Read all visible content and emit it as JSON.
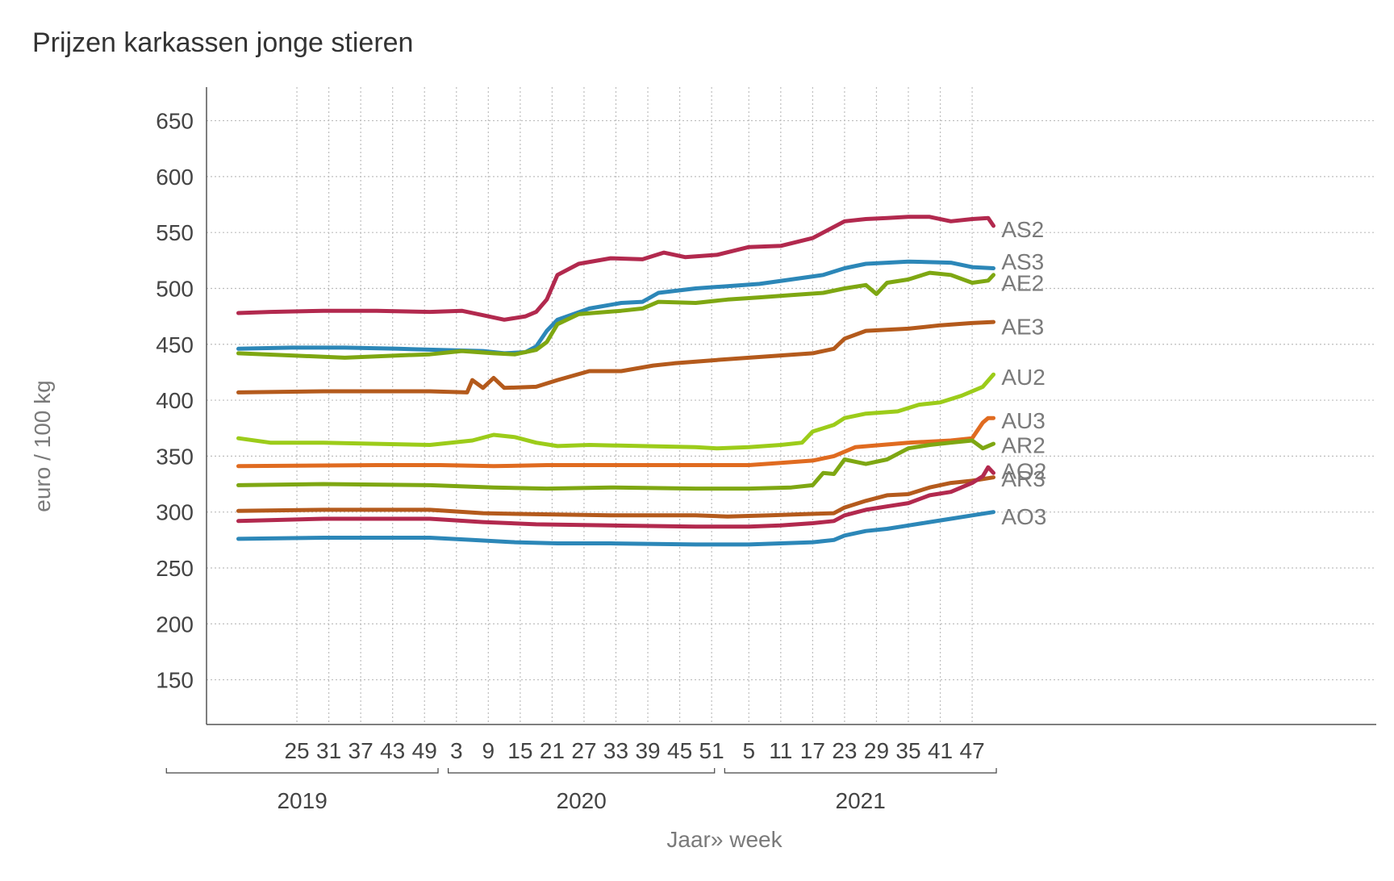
{
  "chart_data": {
    "type": "line",
    "title": "Prijzen karkassen jonge stieren",
    "xlabel": "Jaar» week",
    "ylabel": "euro / 100 kg",
    "ylim": [
      110,
      680
    ],
    "yticks": [
      150,
      200,
      250,
      300,
      350,
      400,
      450,
      500,
      550,
      600,
      650
    ],
    "x_start_week": 8,
    "x_end_week": 228,
    "xticks": [
      {
        "week": 25,
        "label": "25"
      },
      {
        "week": 31,
        "label": "31"
      },
      {
        "week": 37,
        "label": "37"
      },
      {
        "week": 43,
        "label": "43"
      },
      {
        "week": 49,
        "label": "49"
      },
      {
        "week": 55,
        "label": "3"
      },
      {
        "week": 61,
        "label": "9"
      },
      {
        "week": 67,
        "label": "15"
      },
      {
        "week": 73,
        "label": "21"
      },
      {
        "week": 79,
        "label": "27"
      },
      {
        "week": 85,
        "label": "33"
      },
      {
        "week": 91,
        "label": "39"
      },
      {
        "week": 97,
        "label": "45"
      },
      {
        "week": 103,
        "label": "51"
      },
      {
        "week": 110,
        "label": "5"
      },
      {
        "week": 116,
        "label": "11"
      },
      {
        "week": 122,
        "label": "17"
      },
      {
        "week": 128,
        "label": "23"
      },
      {
        "week": 134,
        "label": "29"
      },
      {
        "week": 140,
        "label": "35"
      },
      {
        "week": 146,
        "label": "41"
      },
      {
        "week": 152,
        "label": "47"
      }
    ],
    "years": [
      {
        "label": "2019",
        "start_week": 0,
        "end_week": 52
      },
      {
        "label": "2020",
        "start_week": 53,
        "end_week": 104
      },
      {
        "label": "2021",
        "start_week": 105,
        "end_week": 157
      }
    ],
    "series": [
      {
        "name": "AS2",
        "color": "#b2294e",
        "label_value": 553,
        "points": [
          [
            14,
            478
          ],
          [
            20,
            479
          ],
          [
            30,
            480
          ],
          [
            40,
            480
          ],
          [
            50,
            479
          ],
          [
            56,
            480
          ],
          [
            60,
            476
          ],
          [
            64,
            472
          ],
          [
            68,
            475
          ],
          [
            70,
            479
          ],
          [
            72,
            490
          ],
          [
            74,
            512
          ],
          [
            78,
            522
          ],
          [
            84,
            527
          ],
          [
            90,
            526
          ],
          [
            94,
            532
          ],
          [
            98,
            528
          ],
          [
            104,
            530
          ],
          [
            110,
            537
          ],
          [
            116,
            538
          ],
          [
            122,
            545
          ],
          [
            128,
            560
          ],
          [
            132,
            562
          ],
          [
            136,
            563
          ],
          [
            140,
            564
          ],
          [
            144,
            564
          ],
          [
            148,
            560
          ],
          [
            152,
            562
          ],
          [
            155,
            563
          ],
          [
            156,
            556
          ]
        ]
      },
      {
        "name": "AS3",
        "color": "#2c87b8",
        "label_value": 524,
        "points": [
          [
            14,
            446
          ],
          [
            24,
            447
          ],
          [
            34,
            447
          ],
          [
            44,
            446
          ],
          [
            52,
            445
          ],
          [
            60,
            444
          ],
          [
            64,
            442
          ],
          [
            68,
            443
          ],
          [
            70,
            448
          ],
          [
            72,
            462
          ],
          [
            74,
            472
          ],
          [
            80,
            482
          ],
          [
            86,
            487
          ],
          [
            90,
            488
          ],
          [
            93,
            496
          ],
          [
            100,
            500
          ],
          [
            106,
            502
          ],
          [
            112,
            504
          ],
          [
            118,
            508
          ],
          [
            124,
            512
          ],
          [
            128,
            518
          ],
          [
            132,
            522
          ],
          [
            140,
            524
          ],
          [
            148,
            523
          ],
          [
            152,
            519
          ],
          [
            156,
            518
          ]
        ]
      },
      {
        "name": "AE2",
        "color": "#7ea712",
        "label_value": 505,
        "points": [
          [
            14,
            442
          ],
          [
            24,
            440
          ],
          [
            34,
            438
          ],
          [
            44,
            440
          ],
          [
            50,
            441
          ],
          [
            56,
            444
          ],
          [
            62,
            442
          ],
          [
            66,
            441
          ],
          [
            70,
            445
          ],
          [
            72,
            452
          ],
          [
            74,
            468
          ],
          [
            78,
            477
          ],
          [
            86,
            480
          ],
          [
            90,
            482
          ],
          [
            93,
            488
          ],
          [
            100,
            487
          ],
          [
            106,
            490
          ],
          [
            112,
            492
          ],
          [
            118,
            494
          ],
          [
            124,
            496
          ],
          [
            128,
            500
          ],
          [
            132,
            503
          ],
          [
            134,
            495
          ],
          [
            136,
            505
          ],
          [
            140,
            508
          ],
          [
            144,
            514
          ],
          [
            148,
            512
          ],
          [
            152,
            505
          ],
          [
            155,
            507
          ],
          [
            156,
            512
          ]
        ]
      },
      {
        "name": "AE3",
        "color": "#b45a1c",
        "label_value": 466,
        "points": [
          [
            14,
            407
          ],
          [
            30,
            408
          ],
          [
            50,
            408
          ],
          [
            57,
            407
          ],
          [
            58,
            418
          ],
          [
            60,
            411
          ],
          [
            62,
            420
          ],
          [
            64,
            411
          ],
          [
            70,
            412
          ],
          [
            74,
            418
          ],
          [
            80,
            426
          ],
          [
            86,
            426
          ],
          [
            92,
            431
          ],
          [
            96,
            433
          ],
          [
            104,
            436
          ],
          [
            110,
            438
          ],
          [
            116,
            440
          ],
          [
            122,
            442
          ],
          [
            126,
            446
          ],
          [
            128,
            455
          ],
          [
            132,
            462
          ],
          [
            140,
            464
          ],
          [
            146,
            467
          ],
          [
            152,
            469
          ],
          [
            156,
            470
          ]
        ]
      },
      {
        "name": "AU2",
        "color": "#9ccc1a",
        "label_value": 421,
        "points": [
          [
            14,
            366
          ],
          [
            20,
            362
          ],
          [
            30,
            362
          ],
          [
            40,
            361
          ],
          [
            50,
            360
          ],
          [
            58,
            364
          ],
          [
            62,
            369
          ],
          [
            66,
            367
          ],
          [
            70,
            362
          ],
          [
            74,
            359
          ],
          [
            80,
            360
          ],
          [
            90,
            359
          ],
          [
            100,
            358
          ],
          [
            104,
            357
          ],
          [
            110,
            358
          ],
          [
            116,
            360
          ],
          [
            120,
            362
          ],
          [
            122,
            372
          ],
          [
            126,
            378
          ],
          [
            128,
            384
          ],
          [
            132,
            388
          ],
          [
            138,
            390
          ],
          [
            142,
            396
          ],
          [
            146,
            398
          ],
          [
            150,
            404
          ],
          [
            154,
            412
          ],
          [
            156,
            423
          ]
        ]
      },
      {
        "name": "AU3",
        "color": "#e06b20",
        "label_value": 382,
        "points": [
          [
            14,
            341
          ],
          [
            40,
            342
          ],
          [
            52,
            342
          ],
          [
            62,
            341
          ],
          [
            72,
            342
          ],
          [
            100,
            342
          ],
          [
            110,
            342
          ],
          [
            116,
            344
          ],
          [
            122,
            346
          ],
          [
            126,
            350
          ],
          [
            130,
            358
          ],
          [
            140,
            362
          ],
          [
            148,
            364
          ],
          [
            152,
            366
          ],
          [
            154,
            380
          ],
          [
            155,
            384
          ],
          [
            156,
            384
          ]
        ]
      },
      {
        "name": "AR2",
        "color": "#7ea712",
        "label_value": 360,
        "points": [
          [
            14,
            324
          ],
          [
            30,
            325
          ],
          [
            50,
            324
          ],
          [
            62,
            322
          ],
          [
            72,
            321
          ],
          [
            84,
            322
          ],
          [
            100,
            321
          ],
          [
            110,
            321
          ],
          [
            118,
            322
          ],
          [
            122,
            324
          ],
          [
            124,
            335
          ],
          [
            126,
            334
          ],
          [
            128,
            347
          ],
          [
            130,
            345
          ],
          [
            132,
            343
          ],
          [
            136,
            347
          ],
          [
            140,
            357
          ],
          [
            144,
            360
          ],
          [
            148,
            362
          ],
          [
            152,
            364
          ],
          [
            154,
            357
          ],
          [
            156,
            361
          ]
        ]
      },
      {
        "name": "AR3",
        "color": "#b45a1c",
        "label_value": 330,
        "points": [
          [
            14,
            301
          ],
          [
            30,
            302
          ],
          [
            50,
            302
          ],
          [
            60,
            299
          ],
          [
            70,
            298
          ],
          [
            84,
            297
          ],
          [
            100,
            297
          ],
          [
            106,
            296
          ],
          [
            114,
            297
          ],
          [
            120,
            298
          ],
          [
            126,
            299
          ],
          [
            128,
            304
          ],
          [
            132,
            310
          ],
          [
            136,
            315
          ],
          [
            140,
            316
          ],
          [
            144,
            322
          ],
          [
            148,
            326
          ],
          [
            152,
            328
          ],
          [
            156,
            331
          ]
        ]
      },
      {
        "name": "AO2",
        "color": "#b2294e",
        "label_value": 337,
        "points": [
          [
            14,
            292
          ],
          [
            30,
            294
          ],
          [
            50,
            294
          ],
          [
            60,
            291
          ],
          [
            70,
            289
          ],
          [
            84,
            288
          ],
          [
            100,
            287
          ],
          [
            110,
            287
          ],
          [
            116,
            288
          ],
          [
            122,
            290
          ],
          [
            126,
            292
          ],
          [
            128,
            297
          ],
          [
            132,
            302
          ],
          [
            136,
            305
          ],
          [
            140,
            308
          ],
          [
            144,
            315
          ],
          [
            148,
            318
          ],
          [
            152,
            326
          ],
          [
            154,
            332
          ],
          [
            155,
            340
          ],
          [
            156,
            335
          ]
        ]
      },
      {
        "name": "AO3",
        "color": "#2c87b8",
        "label_value": 296,
        "points": [
          [
            14,
            276
          ],
          [
            30,
            277
          ],
          [
            50,
            277
          ],
          [
            58,
            275
          ],
          [
            66,
            273
          ],
          [
            74,
            272
          ],
          [
            84,
            272
          ],
          [
            100,
            271
          ],
          [
            110,
            271
          ],
          [
            116,
            272
          ],
          [
            122,
            273
          ],
          [
            126,
            275
          ],
          [
            128,
            279
          ],
          [
            132,
            283
          ],
          [
            136,
            285
          ],
          [
            140,
            288
          ],
          [
            144,
            291
          ],
          [
            148,
            294
          ],
          [
            152,
            297
          ],
          [
            156,
            300
          ]
        ]
      }
    ]
  }
}
